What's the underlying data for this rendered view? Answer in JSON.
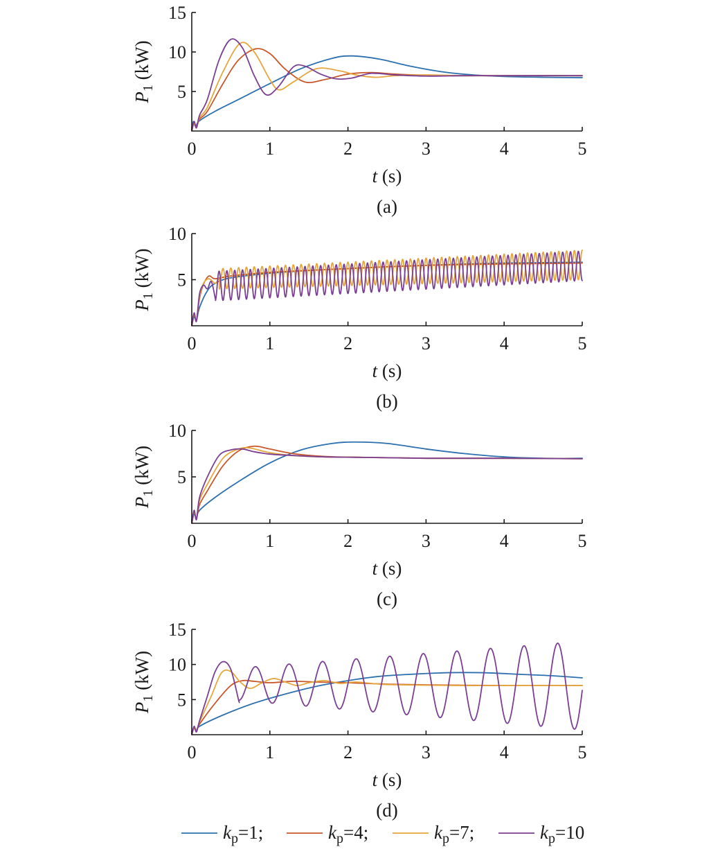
{
  "colors": {
    "kp1": "#2c6fae",
    "kp4": "#c8572a",
    "kp7": "#e4a63d",
    "kp10": "#7b3e93",
    "axis": "#1a1a1a"
  },
  "legend": {
    "position": "bottom",
    "entries": [
      {
        "key": "kp1",
        "symbol": "k",
        "sub": "p",
        "text": "=1;"
      },
      {
        "key": "kp4",
        "symbol": "k",
        "sub": "p",
        "text": "=4;"
      },
      {
        "key": "kp7",
        "symbol": "k",
        "sub": "p",
        "text": "=7;"
      },
      {
        "key": "kp10",
        "symbol": "k",
        "sub": "p",
        "text": "=10"
      }
    ]
  },
  "chart_data": [
    {
      "type": "line",
      "panel_label": "(a)",
      "xlabel_var": "t",
      "xlabel_unit": " (s)",
      "ylabel_var": "P",
      "ylabel_sub": "1",
      "ylabel_unit": " (kW)",
      "xlim": [
        0,
        5
      ],
      "ylim": [
        0,
        15
      ],
      "xticks": [
        0,
        1,
        2,
        3,
        4,
        5
      ],
      "yticks": [
        5,
        10,
        15
      ],
      "grid": false,
      "series": [
        {
          "key": "kp1",
          "x": [
            0,
            0.02,
            0.05,
            0.1,
            0.3,
            0.6,
            1.0,
            1.4,
            1.8,
            2.05,
            2.4,
            2.8,
            3.2,
            3.6,
            4.0,
            4.5,
            5.0
          ],
          "y": [
            0,
            1.2,
            0.6,
            1.3,
            2.5,
            4.0,
            6.0,
            7.9,
            9.2,
            9.5,
            9.1,
            8.2,
            7.5,
            7.1,
            6.9,
            6.8,
            6.75
          ]
        },
        {
          "key": "kp4",
          "x": [
            0,
            0.03,
            0.06,
            0.1,
            0.2,
            0.4,
            0.6,
            0.82,
            1.0,
            1.2,
            1.45,
            1.7,
            2.0,
            2.3,
            2.6,
            3.0,
            3.5,
            4.0,
            5.0
          ],
          "y": [
            0,
            1.0,
            0.5,
            1.5,
            2.5,
            6.0,
            9.0,
            10.4,
            9.8,
            7.8,
            6.2,
            6.5,
            7.2,
            7.4,
            7.2,
            7.05,
            7.0,
            7.0,
            7.0
          ]
        },
        {
          "key": "kp7",
          "x": [
            0,
            0.03,
            0.06,
            0.1,
            0.2,
            0.4,
            0.62,
            0.8,
            1.0,
            1.12,
            1.3,
            1.6,
            1.9,
            2.1,
            2.35,
            2.6,
            3.0,
            3.5,
            4.0,
            5.0
          ],
          "y": [
            0,
            1.0,
            0.4,
            1.7,
            3.0,
            7.5,
            11.1,
            10.0,
            6.5,
            5.2,
            6.2,
            7.9,
            7.6,
            7.1,
            6.8,
            7.0,
            7.1,
            7.0,
            7.0,
            7.0
          ]
        },
        {
          "key": "kp10",
          "x": [
            0,
            0.03,
            0.06,
            0.1,
            0.2,
            0.35,
            0.5,
            0.65,
            0.8,
            0.95,
            1.1,
            1.3,
            1.45,
            1.65,
            1.85,
            2.05,
            2.3,
            2.6,
            3.0,
            3.5,
            4.0,
            5.0
          ],
          "y": [
            0,
            1.2,
            0.4,
            2.0,
            4.0,
            9.0,
            11.6,
            10.5,
            7.0,
            4.6,
            5.5,
            8.1,
            8.2,
            7.2,
            6.6,
            6.7,
            7.3,
            7.1,
            6.95,
            7.0,
            7.0,
            7.0
          ]
        }
      ]
    },
    {
      "type": "line",
      "panel_label": "(b)",
      "xlabel_var": "t",
      "xlabel_unit": " (s)",
      "ylabel_var": "P",
      "ylabel_sub": "1",
      "ylabel_unit": " (kW)",
      "xlim": [
        0,
        5
      ],
      "ylim": [
        0,
        10
      ],
      "xticks": [
        0,
        1,
        2,
        3,
        4,
        5
      ],
      "yticks": [
        5,
        10
      ],
      "grid": false,
      "series": [
        {
          "key": "kp1",
          "x": [
            0,
            0.03,
            0.06,
            0.1,
            0.2,
            0.3,
            0.5,
            1.0,
            1.5,
            2.0,
            2.5,
            3.0,
            3.5,
            4.0,
            4.5,
            5.0
          ],
          "y": [
            0,
            1.0,
            0.6,
            2.0,
            3.8,
            4.6,
            5.2,
            5.7,
            6.0,
            6.2,
            6.4,
            6.55,
            6.7,
            6.8,
            6.85,
            6.9
          ]
        },
        {
          "key": "kp4",
          "x": [
            0,
            0.03,
            0.06,
            0.1,
            0.15,
            0.22,
            0.3,
            0.5,
            1.0,
            1.5,
            2.0,
            2.5,
            3.0,
            3.5,
            4.0,
            4.5,
            5.0
          ],
          "y": [
            0,
            1.2,
            0.6,
            3.0,
            4.5,
            5.4,
            5.1,
            5.4,
            5.8,
            6.0,
            6.2,
            6.4,
            6.55,
            6.65,
            6.7,
            6.75,
            6.8
          ]
        },
        {
          "key": "kp7",
          "osc": {
            "t0": 0.35,
            "t1": 5.0,
            "period": 0.1,
            "center_start": 5.1,
            "center_end": 6.6,
            "amp_start": 1.1,
            "amp_end": 1.6
          },
          "x": [
            0,
            0.03,
            0.06,
            0.1,
            0.15,
            0.22,
            0.3,
            0.35
          ],
          "y": [
            0,
            1.3,
            0.6,
            3.2,
            4.6,
            5.1,
            4.6,
            5.1
          ]
        },
        {
          "key": "kp10",
          "osc": {
            "t0": 0.3,
            "t1": 5.0,
            "period": 0.1,
            "center_start": 4.3,
            "center_end": 6.5,
            "amp_start": 1.6,
            "amp_end": 1.6
          },
          "x": [
            0,
            0.03,
            0.06,
            0.1,
            0.15,
            0.2,
            0.25,
            0.3
          ],
          "y": [
            0,
            1.4,
            0.5,
            3.5,
            4.4,
            4.0,
            4.8,
            3.0
          ]
        }
      ]
    },
    {
      "type": "line",
      "panel_label": "(c)",
      "xlabel_var": "t",
      "xlabel_unit": " (s)",
      "ylabel_var": "P",
      "ylabel_sub": "1",
      "ylabel_unit": " (kW)",
      "xlim": [
        0,
        5
      ],
      "ylim": [
        0,
        10
      ],
      "xticks": [
        0,
        1,
        2,
        3,
        4,
        5
      ],
      "yticks": [
        5,
        10
      ],
      "grid": false,
      "series": [
        {
          "key": "kp1",
          "x": [
            0,
            0.03,
            0.06,
            0.1,
            0.3,
            0.6,
            1.0,
            1.4,
            1.8,
            2.1,
            2.5,
            3.0,
            3.5,
            4.0,
            4.5,
            5.0
          ],
          "y": [
            0,
            1.0,
            0.6,
            1.4,
            2.8,
            4.5,
            6.5,
            7.9,
            8.6,
            8.75,
            8.6,
            8.0,
            7.5,
            7.15,
            7.0,
            7.0
          ]
        },
        {
          "key": "kp4",
          "x": [
            0,
            0.03,
            0.06,
            0.1,
            0.2,
            0.4,
            0.6,
            0.8,
            1.0,
            1.3,
            1.7,
            2.2,
            3.0,
            4.0,
            5.0
          ],
          "y": [
            0,
            1.2,
            0.5,
            2.0,
            3.5,
            6.2,
            7.8,
            8.3,
            8.0,
            7.5,
            7.2,
            7.1,
            7.0,
            7.0,
            6.95
          ]
        },
        {
          "key": "kp7",
          "x": [
            0,
            0.03,
            0.06,
            0.1,
            0.2,
            0.4,
            0.6,
            0.75,
            1.0,
            1.3,
            1.7,
            2.2,
            3.0,
            4.0,
            5.0
          ],
          "y": [
            0,
            1.3,
            0.5,
            2.5,
            4.2,
            7.0,
            8.0,
            8.1,
            7.6,
            7.3,
            7.15,
            7.1,
            7.0,
            7.0,
            6.95
          ]
        },
        {
          "key": "kp10",
          "x": [
            0,
            0.03,
            0.06,
            0.1,
            0.2,
            0.35,
            0.5,
            0.65,
            0.8,
            1.0,
            1.3,
            1.7,
            2.2,
            3.0,
            4.0,
            5.0
          ],
          "y": [
            0,
            1.4,
            0.4,
            2.8,
            5.0,
            7.3,
            7.9,
            8.0,
            7.7,
            7.45,
            7.3,
            7.15,
            7.1,
            7.0,
            7.0,
            6.95
          ]
        }
      ]
    },
    {
      "type": "line",
      "panel_label": "(d)",
      "xlabel_var": "t",
      "xlabel_unit": " (s)",
      "ylabel_var": "P",
      "ylabel_sub": "1",
      "ylabel_unit": " (kW)",
      "xlim": [
        0,
        5
      ],
      "ylim": [
        0,
        15
      ],
      "xticks": [
        0,
        1,
        2,
        3,
        4,
        5
      ],
      "yticks": [
        5,
        10,
        15
      ],
      "grid": false,
      "series": [
        {
          "key": "kp1",
          "x": [
            0,
            0.03,
            0.06,
            0.1,
            0.4,
            0.8,
            1.2,
            1.6,
            2.0,
            2.4,
            2.8,
            3.2,
            3.5,
            3.8,
            4.2,
            4.6,
            5.0
          ],
          "y": [
            0,
            1.0,
            0.5,
            1.2,
            2.8,
            4.5,
            5.8,
            6.9,
            7.7,
            8.3,
            8.6,
            8.8,
            8.85,
            8.8,
            8.6,
            8.4,
            8.1
          ]
        },
        {
          "key": "kp4",
          "x": [
            0,
            0.03,
            0.06,
            0.1,
            0.3,
            0.5,
            0.65,
            0.8,
            1.0,
            1.3,
            1.6,
            2.0,
            2.5,
            3.0,
            4.0,
            5.0
          ],
          "y": [
            0,
            1.0,
            0.5,
            1.5,
            4.5,
            7.0,
            7.7,
            7.6,
            7.4,
            7.6,
            7.5,
            7.4,
            7.2,
            7.1,
            7.0,
            7.0
          ]
        },
        {
          "key": "kp7",
          "x": [
            0,
            0.03,
            0.06,
            0.1,
            0.25,
            0.38,
            0.5,
            0.62,
            0.75,
            0.9,
            1.05,
            1.2,
            1.35,
            1.5,
            1.7,
            1.9,
            2.1,
            2.4,
            2.7,
            3.0,
            3.5,
            4.0,
            5.0
          ],
          "y": [
            0,
            1.1,
            0.5,
            1.8,
            5.5,
            8.8,
            9.0,
            7.5,
            6.6,
            7.4,
            8.0,
            7.5,
            7.0,
            7.4,
            7.7,
            7.3,
            7.5,
            7.2,
            7.1,
            7.05,
            7.0,
            7.0,
            7.0
          ]
        },
        {
          "key": "kp10",
          "osc": {
            "t0": 0.6,
            "t1": 5.0,
            "period": 0.43,
            "center_start": 7.2,
            "center_end": 7.0,
            "amp_start": 2.3,
            "amp_end": 6.3
          },
          "x": [
            0,
            0.03,
            0.06,
            0.1,
            0.2,
            0.3,
            0.4,
            0.5,
            0.6
          ],
          "y": [
            0,
            1.2,
            0.4,
            2.0,
            5.5,
            9.0,
            10.4,
            9.3,
            4.9
          ]
        }
      ]
    }
  ]
}
